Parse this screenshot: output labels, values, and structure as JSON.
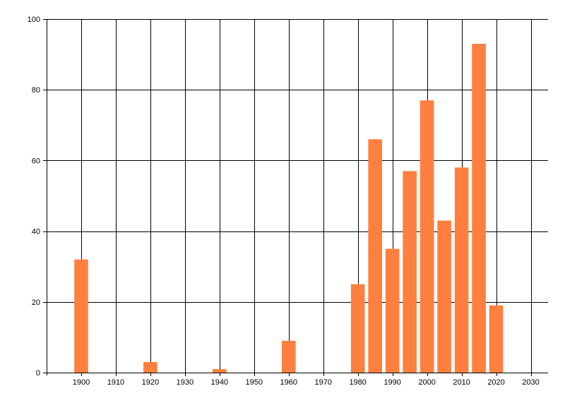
{
  "chart_data": {
    "type": "bar",
    "title": "",
    "xlabel": "",
    "ylabel": "",
    "xlim": [
      1890,
      2035
    ],
    "ylim": [
      0,
      100
    ],
    "grid": true,
    "x_ticks": [
      1900,
      1910,
      1920,
      1930,
      1940,
      1950,
      1960,
      1970,
      1980,
      1990,
      2000,
      2010,
      2020,
      2030
    ],
    "x_tick_labels": [
      "1900",
      "1910",
      "1920",
      "1930",
      "1940",
      "1950",
      "1960",
      "1970",
      "1980",
      "1990",
      "2000",
      "2010",
      "2020",
      "2030"
    ],
    "y_ticks": [
      0,
      20,
      40,
      60,
      80,
      100
    ],
    "y_tick_labels": [
      "0",
      "20",
      "40",
      "60",
      "80",
      "100"
    ],
    "bar_width_years": 4,
    "bar_color": "#FF7F3F",
    "grid_color": "#000000",
    "x": [
      1900,
      1920,
      1940,
      1960,
      1980,
      1985,
      1990,
      1995,
      2000,
      2005,
      2010,
      2015,
      2020
    ],
    "values": [
      32,
      3,
      1,
      9,
      25,
      66,
      35,
      57,
      77,
      43,
      58,
      93,
      19
    ]
  }
}
